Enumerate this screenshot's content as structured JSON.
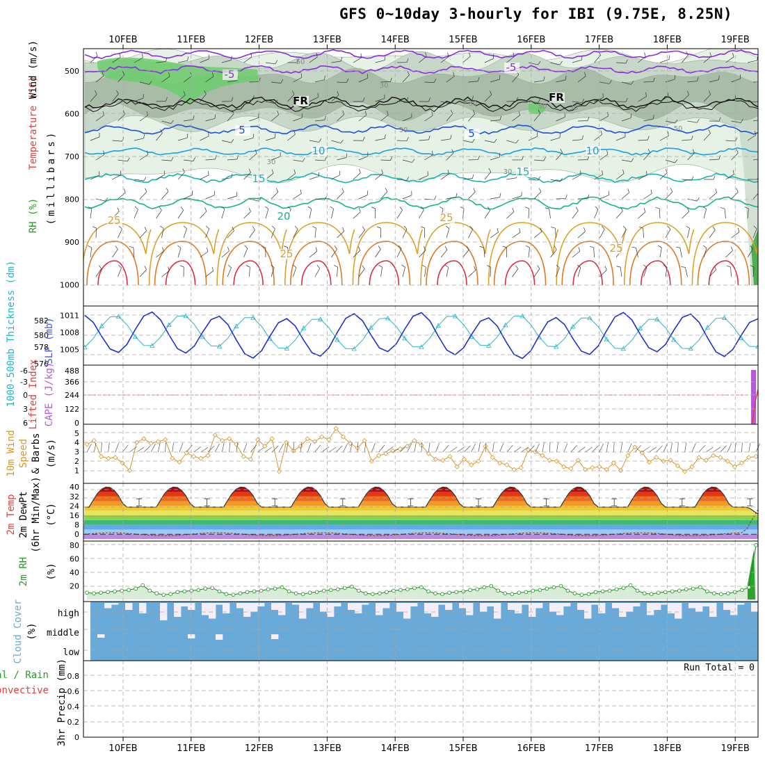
{
  "title": "GFS 0~10day 3-hourly for IBI (9.75E, 8.25N)",
  "dates": [
    "10FEB",
    "11FEB",
    "12FEB",
    "13FEB",
    "14FEB",
    "15FEB",
    "16FEB",
    "17FEB",
    "18FEB",
    "19FEB"
  ],
  "run_total": "Run Total = 0",
  "colors": {
    "grid": "#a8a8a8",
    "rh_light": "#e6f2e6",
    "rh_mid": "#c8d8c8",
    "rh_dark": "#a8bca8",
    "rh_green": "#6ccd6c",
    "t_purple": "#8a2be2",
    "t_blue": "#1f4fd8",
    "t_lblue": "#1a9fe0",
    "t_cyan": "#1ab4b4",
    "t_teal": "#14b48c",
    "t_gold": "#dca028",
    "t_orange": "#e07820",
    "t_red": "#e02840",
    "slp": "#1e32c8",
    "thick": "#28b4c8",
    "cape": "#b45ad8",
    "li": "#e03232",
    "wind10": "#dc9628",
    "rh2m_fill": "#d8ecd8",
    "rh2m_line": "#1a8c1a",
    "cloud": "#6aaad8",
    "cloud_clear": "#f4eef8"
  },
  "chart_data": [
    {
      "panel": "upper-air",
      "type": "contour",
      "ylabel": [
        "RH (%)",
        "Temperature (°C)",
        "Wind (m/s)",
        "(millibars)"
      ],
      "yticks": [
        500,
        600,
        700,
        800,
        900,
        1000
      ],
      "ylim": [
        450,
        1000
      ],
      "contour_labels": [
        {
          "text": "-5",
          "level": "470mb"
        },
        {
          "text": "-5",
          "level": "480mb"
        },
        {
          "text": "FR",
          "level": "585mb"
        },
        {
          "text": "FR",
          "level": "580mb"
        },
        {
          "text": "5",
          "level": "640mb"
        },
        {
          "text": "5",
          "level": "655mb"
        },
        {
          "text": "10",
          "level": "690mb"
        },
        {
          "text": "10",
          "level": "695mb"
        },
        {
          "text": "15",
          "level": "755mb"
        },
        {
          "text": "15",
          "level": "740mb"
        },
        {
          "text": "20",
          "level": "810mb"
        },
        {
          "text": "25",
          "level": "855mb"
        },
        {
          "text": "25",
          "level": "855mb"
        },
        {
          "text": "25",
          "level": "915mb"
        },
        {
          "text": "25",
          "level": "895mb"
        }
      ],
      "rh_labels": [
        "50",
        "30",
        "30",
        "50",
        "30",
        "30",
        "30",
        "50",
        "30"
      ]
    },
    {
      "panel": "slp-thickness",
      "type": "line",
      "ylabel_left": "1000-500mb Thickness (dm)",
      "ylabel_right": "SLP (mb)",
      "yticks_left": [
        576,
        578,
        580,
        582
      ],
      "yticks_right": [
        1005,
        1008,
        1011
      ],
      "ylim_slp": [
        1002.5,
        1013.5
      ],
      "slp": [
        1009,
        1006,
        1005,
        1007,
        1008,
        1009,
        1007,
        1004,
        1002,
        1004,
        1006,
        1006.5,
        1007,
        1008
      ],
      "thickness": [
        580,
        581.5,
        582,
        581,
        579,
        578.5,
        579.5,
        581.5,
        582.5,
        582,
        580.5,
        579,
        578,
        578.5
      ]
    },
    {
      "panel": "cape-li",
      "type": "bar",
      "ylabel_left": "Lifted Index",
      "ylabel_right": "CAPE (J/kg)",
      "yticks_left": [
        "6",
        "3",
        "0",
        "-3",
        "-6"
      ],
      "yticks_right": [
        "0",
        "122",
        "244",
        "366",
        "488"
      ],
      "ylim_cape": [
        0,
        488
      ],
      "cape_last": 488,
      "li_last": 0
    },
    {
      "panel": "wind-10m",
      "type": "line",
      "ylabel": [
        "10m Wind",
        "Speed",
        "& Barbs",
        "(m/s)"
      ],
      "yticks": [
        1,
        2,
        3,
        4,
        5
      ],
      "ylim": [
        0,
        5.8
      ],
      "speed": [
        3.8,
        4.2,
        2.5,
        2.3,
        2.4,
        1.8,
        1.0,
        4.0,
        4.4,
        3.9,
        4.1,
        4.3,
        2.3,
        1.9,
        2.9,
        2.5,
        2.3,
        2.6,
        4.8,
        4.2,
        4.4,
        3.8,
        2.5,
        2.2,
        4.3,
        3.6,
        4.4,
        0.9,
        4.0,
        3.1,
        3.6,
        4.4,
        4.1,
        4.6,
        4.3,
        5.5,
        4.6,
        3.9,
        3.4,
        4.2,
        2.0,
        2.6,
        2.8,
        3.1,
        3.3,
        3.6,
        4.2,
        3.7,
        2.8,
        2.2,
        2.1,
        2.5,
        1.4,
        2.2,
        1.6,
        2.0,
        3.6,
        2.4,
        1.8,
        1.6,
        1.1,
        1.3,
        3.2,
        3.0,
        2.6,
        2.1,
        2.0,
        1.4,
        1.2,
        2.1,
        1.1,
        1.3,
        1.4,
        1.1,
        1.8,
        1.0,
        2.6,
        3.5,
        2.9,
        1.9,
        2.4,
        2.0,
        2.1,
        1.5,
        0.9,
        1.4,
        2.4,
        2.1,
        2.6,
        2.4,
        2.0,
        1.4,
        1.8,
        2.4,
        2.5
      ]
    },
    {
      "panel": "temperature-2m",
      "type": "area",
      "ylabel": [
        "2m Temp",
        "2m DewPt",
        "(6hr Min/Max)",
        "(°C)"
      ],
      "yticks": [
        0,
        8,
        16,
        24,
        32,
        40
      ],
      "ylim": [
        -4,
        42
      ],
      "temp_max": 40,
      "temp_min": 23,
      "dewpoint": 0
    },
    {
      "panel": "rh-2m",
      "type": "area",
      "ylabel": [
        "2m RH",
        "(%)"
      ],
      "yticks": [
        20,
        40,
        60,
        80
      ],
      "ylim": [
        0,
        82
      ],
      "rh": [
        10,
        9,
        10,
        11,
        12,
        13,
        14,
        16,
        21,
        13,
        9,
        7,
        8,
        11,
        12,
        13,
        14,
        16,
        17,
        12,
        8,
        7,
        9,
        11,
        12,
        13,
        15,
        16,
        18,
        12,
        9,
        8,
        10,
        11,
        13,
        14,
        15,
        17,
        19,
        13,
        9,
        8,
        9,
        11,
        13,
        14,
        15,
        17,
        18,
        12,
        9,
        8,
        10,
        11,
        12,
        14,
        15,
        18,
        20,
        13,
        9,
        8,
        10,
        11,
        13,
        14,
        16,
        18,
        20,
        13,
        9,
        7,
        8,
        11,
        12,
        13,
        15,
        17,
        21,
        13,
        9,
        8,
        10,
        11,
        12,
        13,
        15,
        16,
        18,
        12,
        9,
        8,
        9,
        11,
        14,
        18,
        80
      ]
    },
    {
      "panel": "cloud-cover",
      "type": "heatmap",
      "ylabel": [
        "Cloud Cover",
        "(%)"
      ],
      "ytick_labels": [
        "high",
        "middle",
        "low"
      ],
      "high_gap_pct": [
        0,
        0,
        30,
        10,
        0,
        40,
        0,
        60,
        0,
        0,
        100,
        0,
        80,
        20,
        40,
        0,
        70,
        90,
        10,
        60,
        0,
        30,
        80,
        50,
        20,
        0,
        40,
        70,
        0,
        10,
        90,
        30,
        0,
        50,
        80,
        20,
        0,
        40,
        60,
        10,
        0,
        70,
        30,
        0,
        50,
        90,
        20,
        0,
        60,
        80,
        10,
        40,
        0,
        30,
        70,
        0,
        50,
        20,
        90,
        0,
        40,
        60,
        10,
        80,
        30,
        0,
        50,
        70,
        20,
        0,
        40,
        90,
        10,
        60,
        0,
        30,
        80,
        50,
        20,
        0,
        70,
        40,
        10,
        60,
        90,
        0,
        30,
        50,
        20,
        80,
        0,
        40,
        70,
        10,
        0,
        50
      ],
      "middle_gap_pct": [
        0,
        20,
        0,
        0,
        0,
        0,
        0,
        0,
        0,
        0,
        0,
        0,
        0,
        0,
        30,
        0,
        0,
        0,
        50,
        0,
        0,
        0,
        0,
        0,
        0,
        0,
        40,
        0,
        0,
        0,
        0,
        0,
        0,
        0,
        0,
        0,
        0,
        0,
        0,
        0,
        0,
        0,
        0,
        0,
        0,
        0,
        0,
        0,
        0,
        0,
        0,
        0,
        0,
        0,
        0,
        0,
        0,
        0,
        0,
        0,
        0,
        0,
        0,
        0,
        0,
        0,
        0,
        0,
        0,
        0,
        0,
        0,
        0,
        0,
        0,
        0,
        0,
        0,
        0,
        0,
        0,
        0,
        0,
        0,
        0,
        0,
        0,
        0,
        0,
        0,
        0,
        0,
        0,
        0,
        0,
        0
      ]
    },
    {
      "panel": "precip",
      "type": "bar",
      "ylabel": [
        "Total / Rain",
        "Convective",
        "3hr Precip (mm)"
      ],
      "yticks": [
        0,
        0.2,
        0.4,
        0.6,
        0.8
      ],
      "ylim": [
        0,
        0.98
      ],
      "total": 0,
      "rain": 0,
      "convective": 0
    }
  ]
}
